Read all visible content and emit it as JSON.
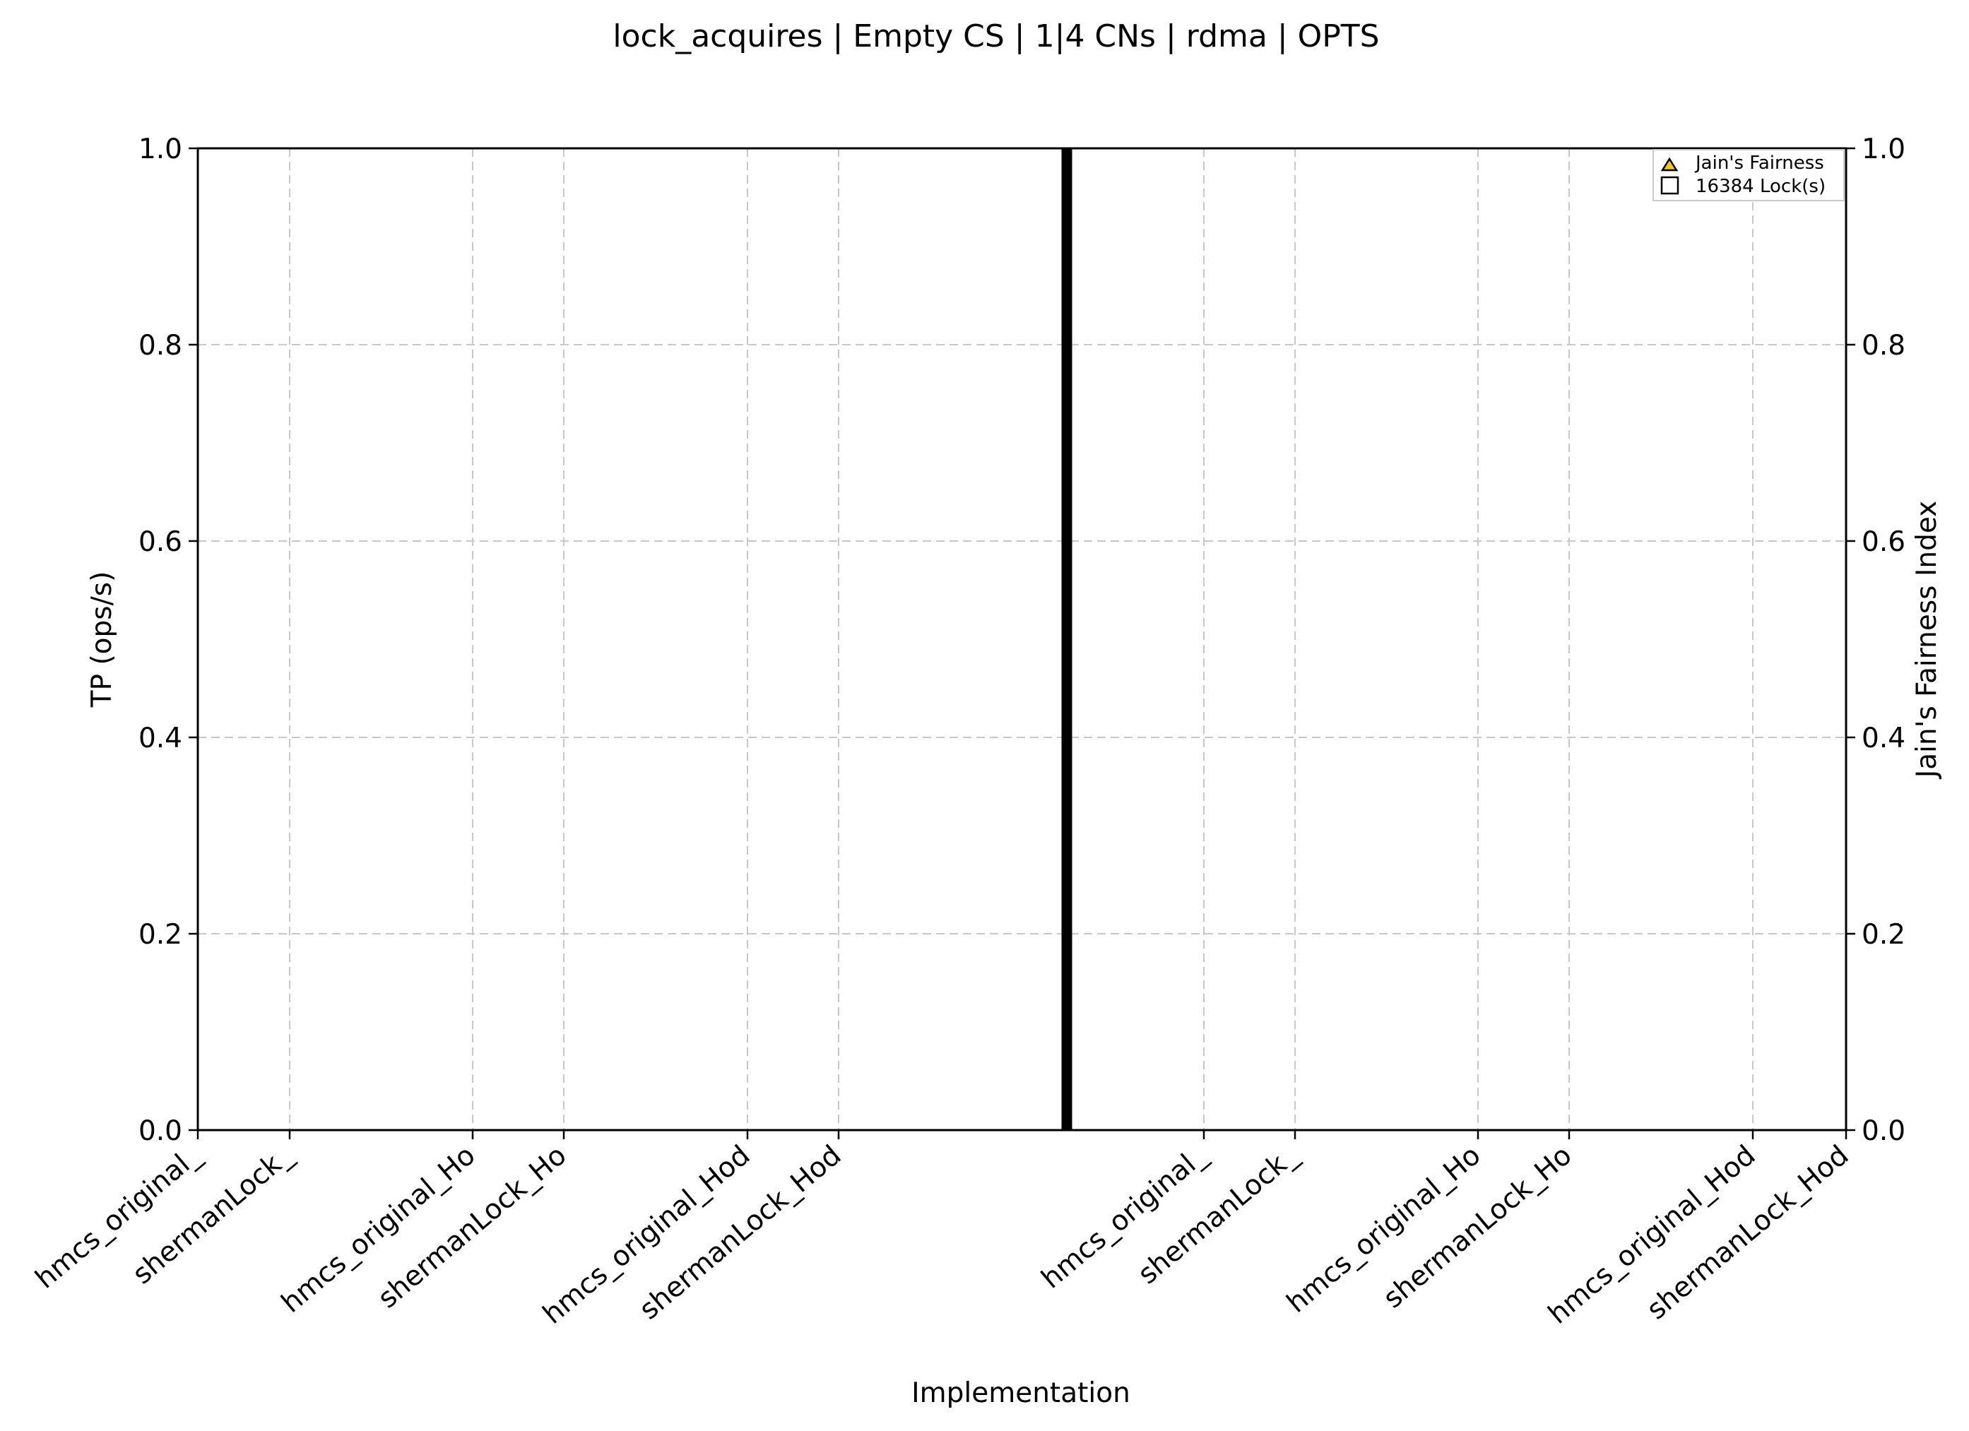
{
  "chart_data": {
    "type": "bar",
    "title": "lock_acquires | Empty CS | 1|4 CNs | rdma | OPTS",
    "xlabel": "Implementation",
    "ylabel": "TP (ops/s)",
    "ylabel_right": "Jain's Fairness Index",
    "ylim": [
      0,
      1
    ],
    "ylim_right": [
      0,
      1
    ],
    "yticks": [
      "0.0",
      "0.2",
      "0.4",
      "0.6",
      "0.8",
      "1.0"
    ],
    "yticks_right": [
      "0.0",
      "0.2",
      "0.4",
      "0.6",
      "0.8",
      "1.0"
    ],
    "grid": true,
    "grid_style": "dashed",
    "groups": [
      {
        "categories": [
          "hmcs_original_",
          "shermanLock_",
          "hmcs_original_Ho",
          "shermanLock_Ho",
          "hmcs_original_Hod",
          "shermanLock_Hod"
        ]
      },
      {
        "categories": [
          "hmcs_original_",
          "shermanLock_",
          "hmcs_original_Ho",
          "shermanLock_Ho",
          "hmcs_original_Hod",
          "shermanLock_Hod"
        ]
      }
    ],
    "separator": "thick vertical line between the two groups",
    "series": [
      {
        "name": "Jain's Fairness",
        "marker": "triangle",
        "color": "#f5c518",
        "values": []
      },
      {
        "name": "16384 Lock(s)",
        "marker": "square",
        "color": "#ffffff",
        "values": []
      }
    ],
    "legend_position": "top-right"
  }
}
